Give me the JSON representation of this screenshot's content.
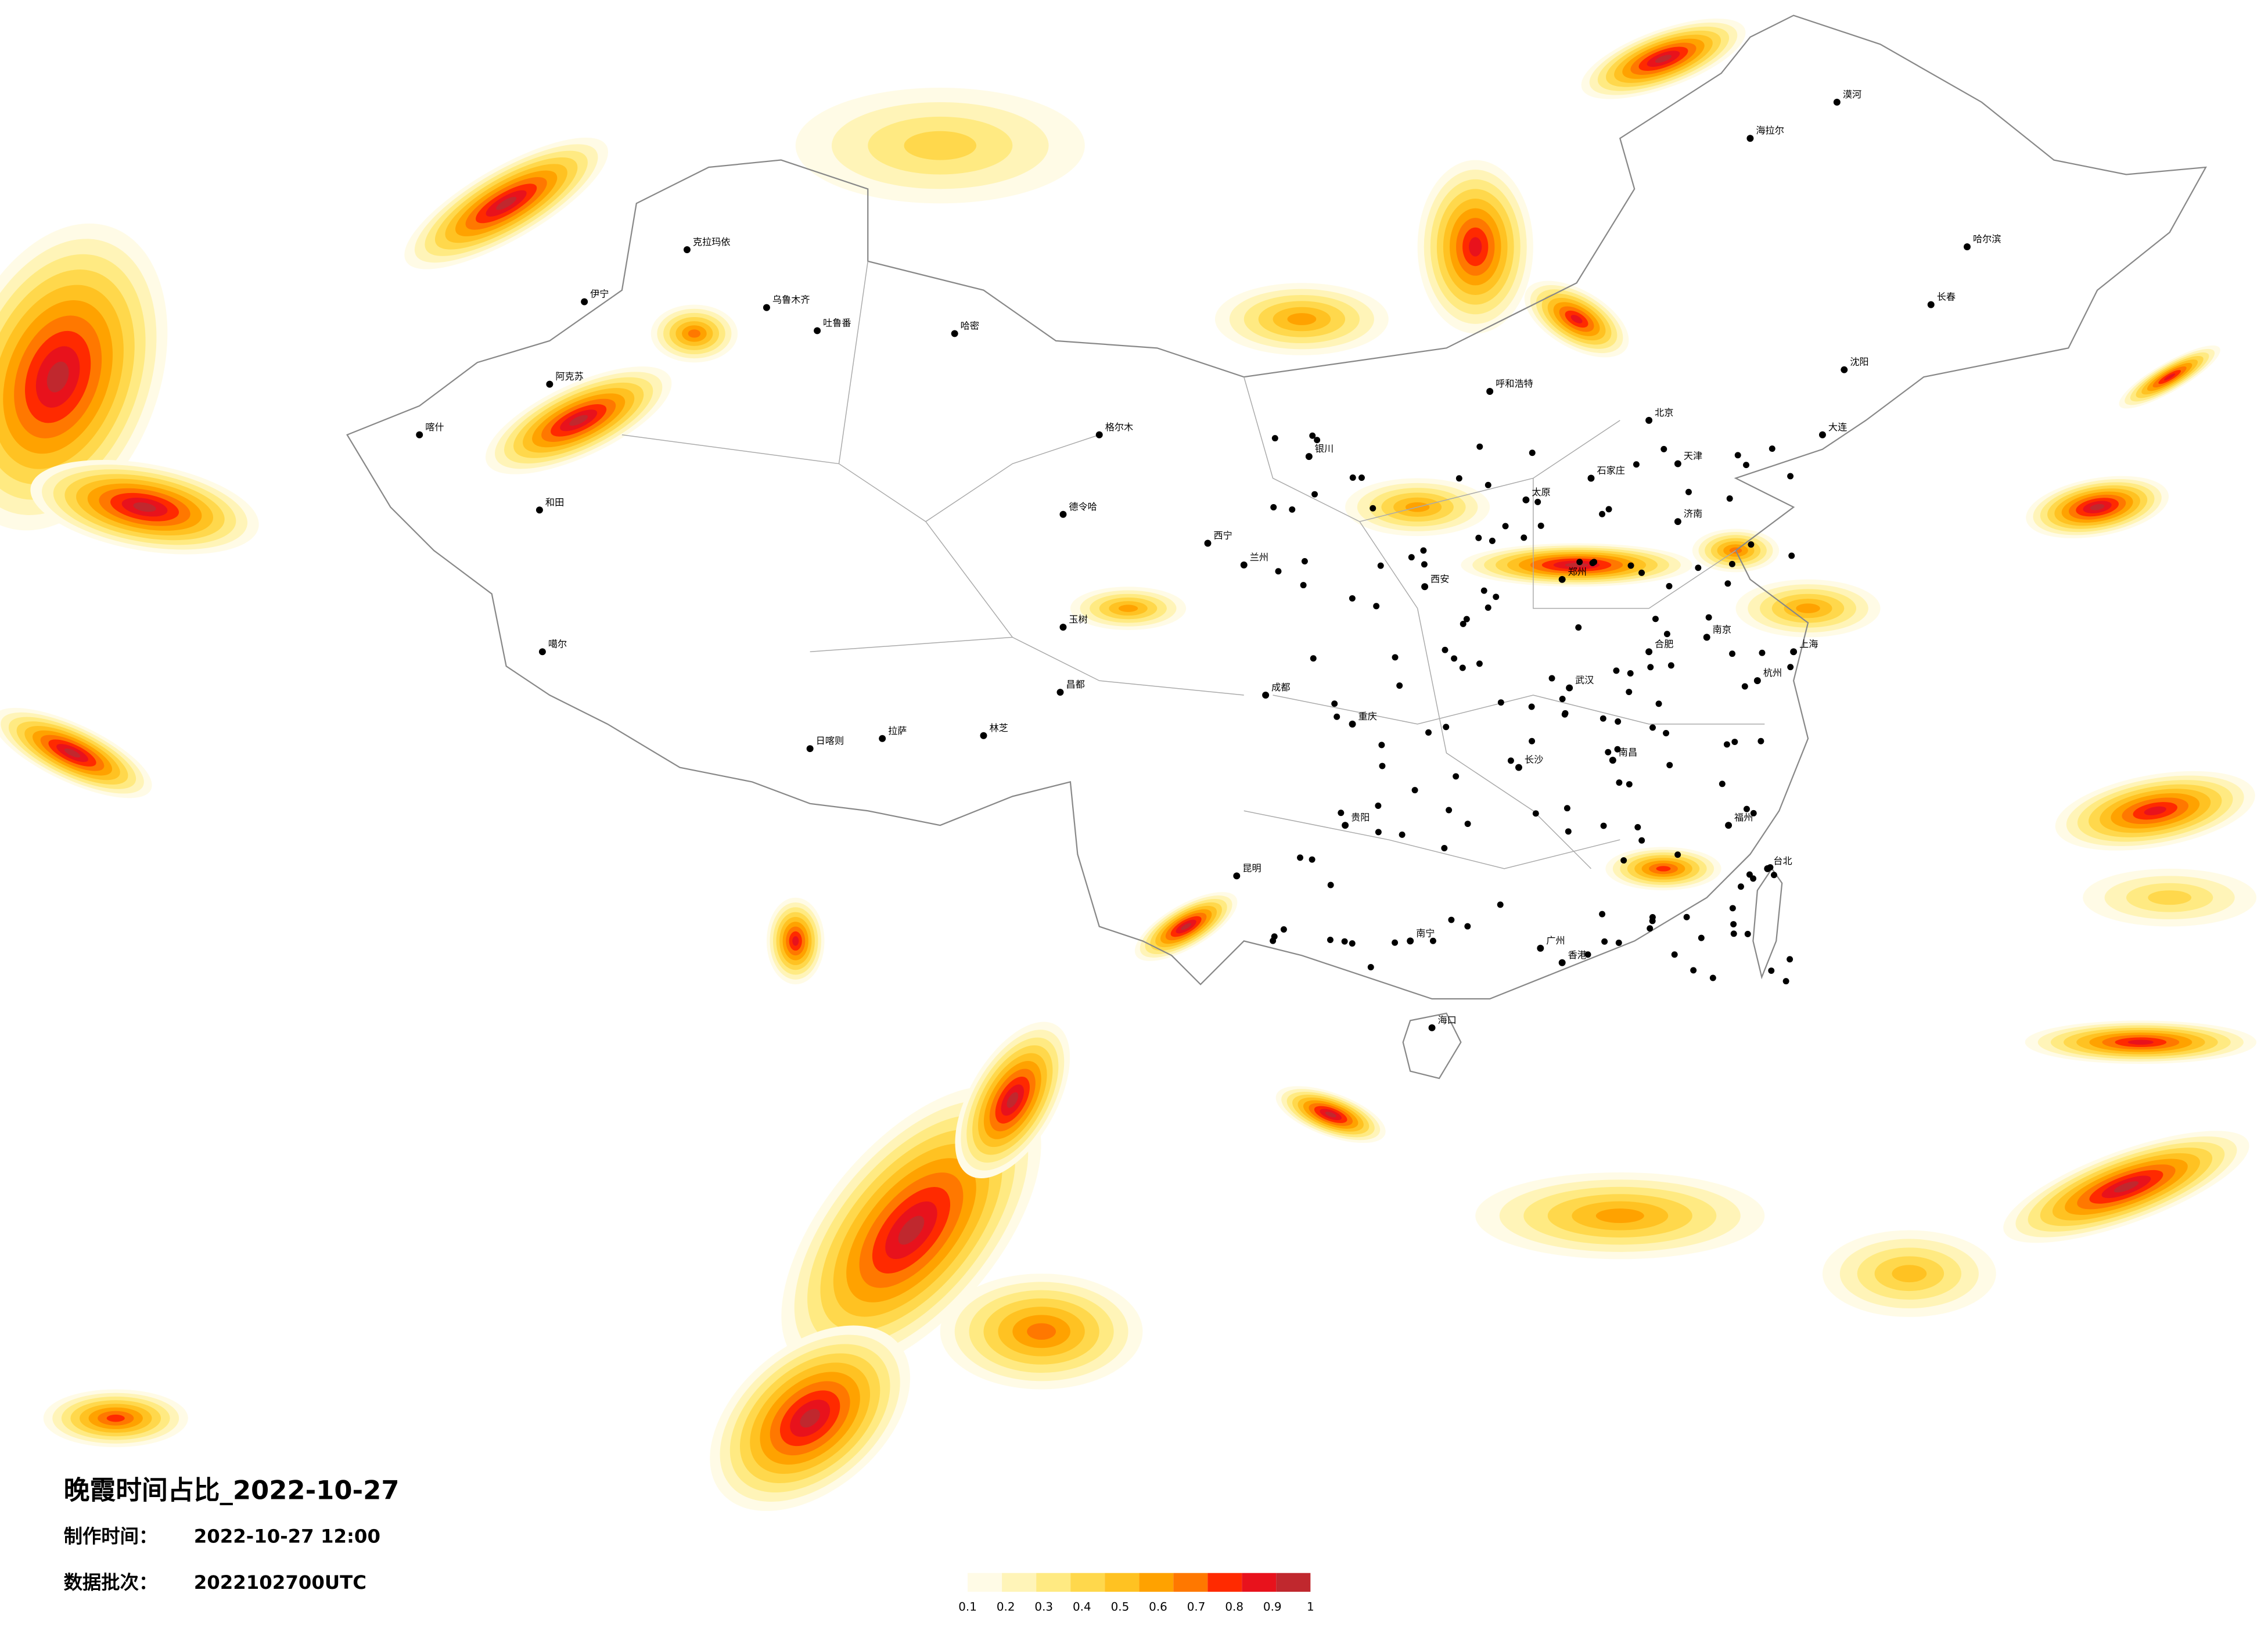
{
  "title": "晚霞时间占比_2022-10-27",
  "production_time": {
    "label": "制作时间：",
    "value": "2022-10-27 12:00"
  },
  "data_batch": {
    "label": "数据批次：",
    "value": "2022102700UTC"
  },
  "legend": {
    "colors": [
      "#fffbe6",
      "#fff4b8",
      "#ffea82",
      "#ffd84c",
      "#ffc222",
      "#ffa200",
      "#ff7800",
      "#ff2a00",
      "#e8121c",
      "#c0282e"
    ],
    "ticks": [
      0.1,
      0.2,
      0.3,
      0.4,
      0.5,
      0.6,
      0.7,
      0.8,
      0.9,
      1
    ]
  },
  "cities": [
    "克拉玛依",
    "乌鲁木齐",
    "吐鲁番",
    "哈密",
    "伊宁",
    "阿克苏",
    "喀什",
    "和田",
    "噶尔",
    "日喀则",
    "拉萨",
    "林芝",
    "昌都",
    "玉树",
    "格尔木",
    "德令哈",
    "西宁",
    "兰州",
    "银川",
    "呼和浩特",
    "北京",
    "天津",
    "石家庄",
    "太原",
    "济南",
    "郑州",
    "西安",
    "成都",
    "重庆",
    "贵阳",
    "昆明",
    "南宁",
    "广州",
    "香港",
    "福州",
    "台北",
    "杭州",
    "上海",
    "南京",
    "合肥",
    "武汉",
    "长沙",
    "南昌",
    "海口",
    "哈尔滨",
    "长春",
    "沈阳",
    "大连",
    "海拉尔",
    "漠河"
  ]
}
